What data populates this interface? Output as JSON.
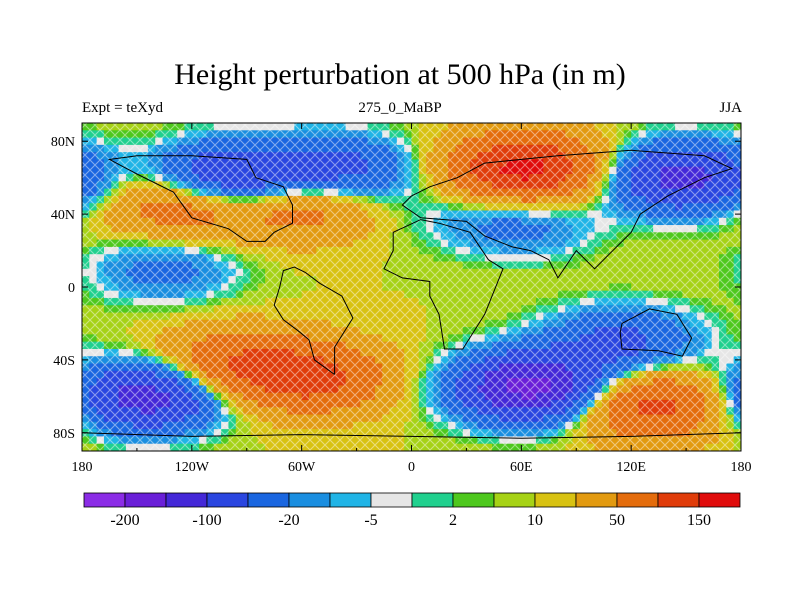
{
  "title": "Height perturbation at 500 hPa (in m)",
  "left_string": "Expt = teXyd",
  "center_string": "275_0_MaBP",
  "right_string": "JJA",
  "x_ticks": [
    {
      "lon": -180,
      "label": "180"
    },
    {
      "lon": -120,
      "label": "120W"
    },
    {
      "lon": -60,
      "label": "60W"
    },
    {
      "lon": 0,
      "label": "0"
    },
    {
      "lon": 60,
      "label": "60E"
    },
    {
      "lon": 120,
      "label": "120E"
    },
    {
      "lon": 180,
      "label": "180"
    }
  ],
  "y_ticks": [
    {
      "lat": 80,
      "label": "80N"
    },
    {
      "lat": 40,
      "label": "40N"
    },
    {
      "lat": 0,
      "label": "0"
    },
    {
      "lat": -40,
      "label": "40S"
    },
    {
      "lat": -80,
      "label": "80S"
    }
  ],
  "lon_range": [
    -180,
    180
  ],
  "lat_range": [
    -90,
    90
  ],
  "colorbar": {
    "colors": [
      "#8b2ce6",
      "#6a1fd8",
      "#4428d8",
      "#2a46e0",
      "#1a66e0",
      "#1a8ee0",
      "#20b4e6",
      "#e6e6e6",
      "#20d08e",
      "#4ec81e",
      "#a6d216",
      "#d8c212",
      "#e29a10",
      "#e46c0c",
      "#e03c0a",
      "#e00c0c"
    ],
    "labels": [
      {
        "after_box": 1,
        "text": "-200"
      },
      {
        "after_box": 3,
        "text": "-100"
      },
      {
        "after_box": 5,
        "text": "-20"
      },
      {
        "after_box": 7,
        "text": "-5"
      },
      {
        "after_box": 9,
        "text": "2"
      },
      {
        "after_box": 11,
        "text": "10"
      },
      {
        "after_box": 13,
        "text": "50"
      },
      {
        "after_box": 15,
        "text": "150"
      }
    ]
  },
  "field": {
    "background_value": 10,
    "blobs": [
      {
        "lon": -100,
        "lat": 60,
        "value": -120
      },
      {
        "lon": -40,
        "lat": 64,
        "value": -80
      },
      {
        "lon": 148,
        "lat": 60,
        "value": -130
      },
      {
        "lon": -60,
        "lat": 45,
        "value": 70
      },
      {
        "lon": -125,
        "lat": 45,
        "value": 80
      },
      {
        "lon": 62,
        "lat": 65,
        "value": 160
      },
      {
        "lon": -135,
        "lat": 10,
        "value": -40
      },
      {
        "lon": -145,
        "lat": -60,
        "value": -140
      },
      {
        "lon": 65,
        "lat": -55,
        "value": -180
      },
      {
        "lon": 115,
        "lat": -30,
        "value": -70
      },
      {
        "lon": -100,
        "lat": -42,
        "value": 80
      },
      {
        "lon": -55,
        "lat": -50,
        "value": 110
      },
      {
        "lon": 130,
        "lat": -65,
        "value": 110
      },
      {
        "lon": 20,
        "lat": 40,
        "value": -10
      },
      {
        "lon": 60,
        "lat": 35,
        "value": -40
      }
    ],
    "contour_levels": [
      -200,
      -150,
      -100,
      -50,
      -20,
      -10,
      -5,
      -2,
      2,
      5,
      10,
      20,
      50,
      100,
      150,
      200
    ]
  },
  "coastlines": [
    [
      [
        -180,
        -80
      ],
      [
        -120,
        -82
      ],
      [
        -60,
        -81
      ],
      [
        0,
        -82
      ],
      [
        60,
        -83
      ],
      [
        120,
        -82
      ],
      [
        180,
        -80
      ]
    ],
    [
      [
        -42,
        -48
      ],
      [
        -53,
        -40
      ],
      [
        -56,
        -29
      ],
      [
        -62,
        -24
      ],
      [
        -70,
        -18
      ],
      [
        -75,
        -10
      ],
      [
        -72,
        0
      ],
      [
        -70,
        9
      ],
      [
        -64,
        11
      ],
      [
        -58,
        8
      ],
      [
        -50,
        2
      ],
      [
        -38,
        -5
      ],
      [
        -32,
        -17
      ],
      [
        -42,
        -33
      ],
      [
        -42,
        -48
      ]
    ],
    [
      [
        -85,
        60
      ],
      [
        -70,
        55
      ],
      [
        -65,
        45
      ],
      [
        -65,
        35
      ],
      [
        -75,
        30
      ],
      [
        -80,
        25
      ],
      [
        -90,
        25
      ],
      [
        -100,
        32
      ],
      [
        -120,
        38
      ],
      [
        -130,
        52
      ],
      [
        -150,
        62
      ],
      [
        -165,
        70
      ],
      [
        -150,
        72
      ],
      [
        -120,
        72
      ],
      [
        -90,
        70
      ],
      [
        -85,
        60
      ]
    ],
    [
      [
        15,
        35
      ],
      [
        5,
        37
      ],
      [
        -10,
        30
      ],
      [
        -10,
        20
      ],
      [
        -15,
        10
      ],
      [
        -5,
        5
      ],
      [
        10,
        3
      ],
      [
        10,
        -5
      ],
      [
        15,
        -15
      ],
      [
        18,
        -34
      ],
      [
        28,
        -34
      ],
      [
        40,
        -15
      ],
      [
        50,
        10
      ],
      [
        42,
        15
      ],
      [
        32,
        30
      ],
      [
        15,
        35
      ]
    ],
    [
      [
        0,
        50
      ],
      [
        -5,
        45
      ],
      [
        5,
        38
      ],
      [
        30,
        36
      ],
      [
        40,
        28
      ],
      [
        55,
        22
      ],
      [
        65,
        20
      ],
      [
        75,
        15
      ],
      [
        80,
        5
      ],
      [
        90,
        20
      ],
      [
        100,
        10
      ],
      [
        108,
        18
      ],
      [
        120,
        30
      ],
      [
        125,
        40
      ],
      [
        140,
        50
      ],
      [
        160,
        60
      ],
      [
        175,
        65
      ],
      [
        160,
        72
      ],
      [
        120,
        75
      ],
      [
        80,
        72
      ],
      [
        60,
        70
      ],
      [
        40,
        68
      ],
      [
        25,
        60
      ],
      [
        10,
        55
      ],
      [
        0,
        50
      ]
    ],
    [
      [
        115,
        -20
      ],
      [
        130,
        -12
      ],
      [
        145,
        -15
      ],
      [
        153,
        -28
      ],
      [
        148,
        -38
      ],
      [
        135,
        -35
      ],
      [
        115,
        -34
      ],
      [
        114,
        -25
      ],
      [
        115,
        -20
      ]
    ]
  ]
}
